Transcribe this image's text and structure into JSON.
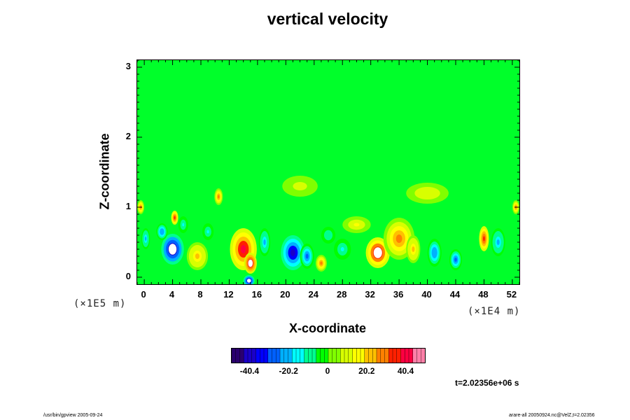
{
  "chart_data": {
    "type": "heatmap",
    "title": "vertical velocity",
    "xlabel": "X-coordinate",
    "ylabel": "Z-coordinate",
    "x_scale_note": "(×1E4 m)",
    "y_scale_note": "(×1E5 m)",
    "xlim": [
      -1,
      53
    ],
    "ylim": [
      -0.1,
      3.1
    ],
    "x_ticks": [
      "0",
      "4",
      "8",
      "12",
      "16",
      "20",
      "24",
      "28",
      "32",
      "36",
      "40",
      "44",
      "48",
      "52"
    ],
    "y_ticks": [
      "0",
      "1",
      "2",
      "3"
    ],
    "colorbar": {
      "range": [
        -50,
        50
      ],
      "ticks": [
        "-40.4",
        "-20.2",
        "0",
        "20.2",
        "40.4"
      ],
      "colors": [
        "#2a006e",
        "#1a00c8",
        "#0000ff",
        "#0060ff",
        "#00b0ff",
        "#00ffff",
        "#00ff90",
        "#00ff00",
        "#80ff00",
        "#d8ff00",
        "#ffff00",
        "#ffc000",
        "#ff8000",
        "#ff2000",
        "#ff0040",
        "#ff80a8"
      ]
    },
    "background_value": 0,
    "features": [
      {
        "x": 4,
        "z": 0.4,
        "rx": 1.6,
        "rz": 0.22,
        "value": -48
      },
      {
        "x": 2.5,
        "z": 0.65,
        "rx": 0.8,
        "rz": 0.12,
        "value": -25
      },
      {
        "x": 4.3,
        "z": 0.85,
        "rx": 0.5,
        "rz": 0.1,
        "value": 35
      },
      {
        "x": 5.5,
        "z": 0.75,
        "rx": 0.7,
        "rz": 0.12,
        "value": -15
      },
      {
        "x": 7.5,
        "z": 0.3,
        "rx": 1.5,
        "rz": 0.2,
        "value": 20
      },
      {
        "x": 10.5,
        "z": 1.15,
        "rx": 0.6,
        "rz": 0.12,
        "value": 30
      },
      {
        "x": 14,
        "z": 0.4,
        "rx": 1.9,
        "rz": 0.3,
        "value": 40
      },
      {
        "x": 15,
        "z": 0.2,
        "rx": 0.9,
        "rz": 0.15,
        "value": 48
      },
      {
        "x": 14.8,
        "z": -0.05,
        "rx": 0.8,
        "rz": 0.08,
        "value": -48
      },
      {
        "x": 17,
        "z": 0.5,
        "rx": 0.8,
        "rz": 0.2,
        "value": -20
      },
      {
        "x": 21,
        "z": 0.35,
        "rx": 1.7,
        "rz": 0.25,
        "value": -40
      },
      {
        "x": 23,
        "z": 0.3,
        "rx": 1.0,
        "rz": 0.18,
        "value": -30
      },
      {
        "x": 25,
        "z": 0.2,
        "rx": 0.8,
        "rz": 0.12,
        "value": 30
      },
      {
        "x": 28,
        "z": 0.4,
        "rx": 1.2,
        "rz": 0.15,
        "value": -15
      },
      {
        "x": 33,
        "z": 0.35,
        "rx": 1.7,
        "rz": 0.22,
        "value": 45
      },
      {
        "x": 36,
        "z": 0.55,
        "rx": 2.2,
        "rz": 0.3,
        "value": 30
      },
      {
        "x": 38,
        "z": 0.4,
        "rx": 1.0,
        "rz": 0.2,
        "value": 20
      },
      {
        "x": 41,
        "z": 0.35,
        "rx": 1.0,
        "rz": 0.2,
        "value": -25
      },
      {
        "x": 44,
        "z": 0.25,
        "rx": 0.9,
        "rz": 0.15,
        "value": -30
      },
      {
        "x": 48,
        "z": 0.55,
        "rx": 0.7,
        "rz": 0.18,
        "value": 35
      },
      {
        "x": 50,
        "z": 0.5,
        "rx": 1.0,
        "rz": 0.2,
        "value": -20
      },
      {
        "x": 52.5,
        "z": 1.0,
        "rx": 0.5,
        "rz": 0.1,
        "value": 25
      },
      {
        "x": -0.5,
        "z": 1.0,
        "rx": 0.5,
        "rz": 0.1,
        "value": 25
      },
      {
        "x": 0.2,
        "z": 0.55,
        "rx": 0.6,
        "rz": 0.15,
        "value": -20
      },
      {
        "x": 30,
        "z": 0.75,
        "rx": 2.0,
        "rz": 0.12,
        "value": 15
      },
      {
        "x": 22,
        "z": 1.3,
        "rx": 2.5,
        "rz": 0.15,
        "value": 10
      },
      {
        "x": 40,
        "z": 1.2,
        "rx": 3.0,
        "rz": 0.15,
        "value": 12
      },
      {
        "x": 9,
        "z": 0.65,
        "rx": 0.8,
        "rz": 0.12,
        "value": -15
      },
      {
        "x": 26,
        "z": 0.6,
        "rx": 1.0,
        "rz": 0.12,
        "value": -12
      }
    ],
    "time_label": "t=2.02356e+06 s",
    "footer_left": "/usr/bin/gpview 2005-09-24",
    "footer_right": "arare-all 20050924.nc@VelZ,t=2.02356"
  }
}
